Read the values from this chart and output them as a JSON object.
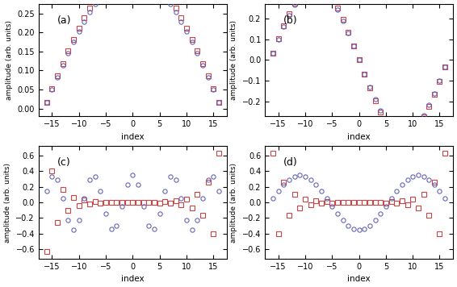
{
  "xlim": [
    -17.5,
    17.5
  ],
  "xticks": [
    -15,
    -10,
    -5,
    0,
    5,
    10,
    15
  ],
  "panel_a_ylim": [
    -0.02,
    0.275
  ],
  "panel_a_yticks": [
    0.0,
    0.05,
    0.1,
    0.15,
    0.2,
    0.25
  ],
  "panel_b_ylim": [
    -0.27,
    0.27
  ],
  "panel_b_yticks": [
    -0.2,
    -0.1,
    0.0,
    0.1,
    0.2
  ],
  "panel_cd_ylim": [
    -0.72,
    0.72
  ],
  "panel_cd_yticks": [
    -0.6,
    -0.4,
    -0.2,
    0.0,
    0.2,
    0.4,
    0.6
  ],
  "xlabel": "index",
  "ylabel": "amplitude (arb. units)",
  "color_circle": "#6666bb",
  "color_square": "#cc4444",
  "panel_labels": [
    "(a)",
    "(b)",
    "(c)",
    "(d)"
  ],
  "marker_size": 3.8,
  "marker_lw": 0.8,
  "N_chain": 33,
  "amp_scale": 1.42,
  "edge_decay": 0.45
}
